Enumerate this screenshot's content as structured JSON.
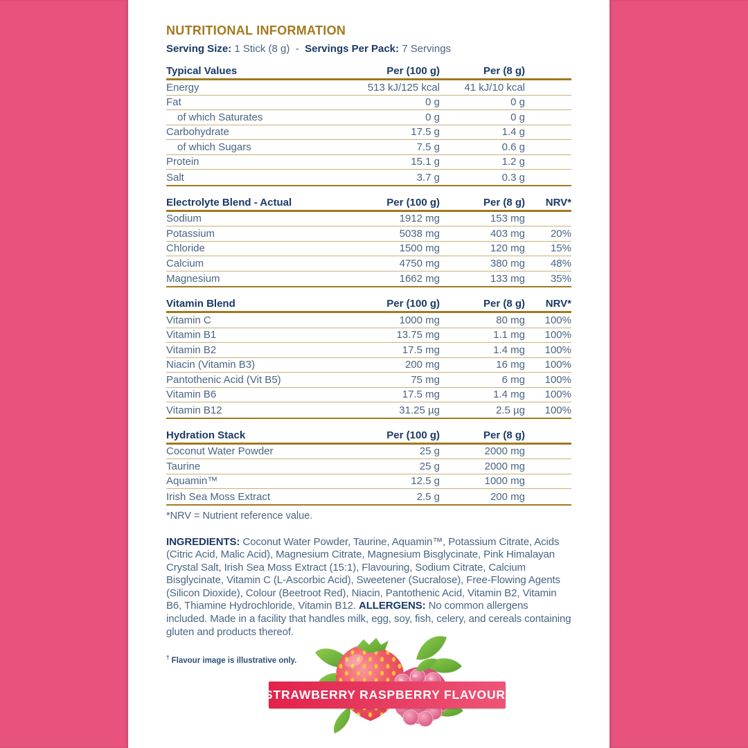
{
  "title": "NUTRITIONAL INFORMATION",
  "serving": {
    "size_label": "Serving Size:",
    "size_value": "1 Stick (8 g)",
    "separator": "-",
    "pack_label": "Servings Per Pack:",
    "pack_value": "7 Servings"
  },
  "tables": [
    {
      "title": "Typical Values",
      "columns": [
        "Per (100 g)",
        "Per (8 g)",
        ""
      ],
      "rows": [
        {
          "label": "Energy",
          "indent": false,
          "per100": "513 kJ/125 kcal",
          "per8": "41 kJ/10 kcal",
          "nrv": ""
        },
        {
          "label": "Fat",
          "indent": false,
          "per100": "0 g",
          "per8": "0 g",
          "nrv": ""
        },
        {
          "label": "of which Saturates",
          "indent": true,
          "per100": "0 g",
          "per8": "0 g",
          "nrv": ""
        },
        {
          "label": "Carbohydrate",
          "indent": false,
          "per100": "17.5 g",
          "per8": "1.4 g",
          "nrv": ""
        },
        {
          "label": "of which Sugars",
          "indent": true,
          "per100": "7.5 g",
          "per8": "0.6 g",
          "nrv": ""
        },
        {
          "label": "Protein",
          "indent": false,
          "per100": "15.1 g",
          "per8": "1.2 g",
          "nrv": ""
        },
        {
          "label": "Salt",
          "indent": false,
          "per100": "3.7 g",
          "per8": "0.3 g",
          "nrv": ""
        }
      ]
    },
    {
      "title": "Electrolyte Blend - Actual",
      "columns": [
        "Per (100 g)",
        "Per (8 g)",
        "NRV*"
      ],
      "rows": [
        {
          "label": "Sodium",
          "indent": false,
          "per100": "1912 mg",
          "per8": "153 mg",
          "nrv": ""
        },
        {
          "label": "Potassium",
          "indent": false,
          "per100": "5038 mg",
          "per8": "403 mg",
          "nrv": "20%"
        },
        {
          "label": "Chloride",
          "indent": false,
          "per100": "1500 mg",
          "per8": "120 mg",
          "nrv": "15%"
        },
        {
          "label": "Calcium",
          "indent": false,
          "per100": "4750 mg",
          "per8": "380 mg",
          "nrv": "48%"
        },
        {
          "label": "Magnesium",
          "indent": false,
          "per100": "1662 mg",
          "per8": "133 mg",
          "nrv": "35%"
        }
      ]
    },
    {
      "title": "Vitamin Blend",
      "columns": [
        "Per (100 g)",
        "Per (8 g)",
        "NRV*"
      ],
      "rows": [
        {
          "label": "Vitamin C",
          "indent": false,
          "per100": "1000 mg",
          "per8": "80 mg",
          "nrv": "100%"
        },
        {
          "label": "Vitamin B1",
          "indent": false,
          "per100": "13.75 mg",
          "per8": "1.1 mg",
          "nrv": "100%"
        },
        {
          "label": "Vitamin B2",
          "indent": false,
          "per100": "17.5 mg",
          "per8": "1.4 mg",
          "nrv": "100%"
        },
        {
          "label": "Niacin (Vitamin B3)",
          "indent": false,
          "per100": "200 mg",
          "per8": "16 mg",
          "nrv": "100%"
        },
        {
          "label": "Pantothenic Acid (Vit B5)",
          "indent": false,
          "per100": "75 mg",
          "per8": "6 mg",
          "nrv": "100%"
        },
        {
          "label": "Vitamin B6",
          "indent": false,
          "per100": "17.5 mg",
          "per8": "1.4 mg",
          "nrv": "100%"
        },
        {
          "label": "Vitamin B12",
          "indent": false,
          "per100": "31.25 µg",
          "per8": "2.5 µg",
          "nrv": "100%"
        }
      ]
    },
    {
      "title": "Hydration Stack",
      "columns": [
        "Per (100 g)",
        "Per (8 g)",
        ""
      ],
      "rows": [
        {
          "label": "Coconut Water Powder",
          "indent": false,
          "per100": "25 g",
          "per8": "2000 mg",
          "nrv": ""
        },
        {
          "label": "Taurine",
          "indent": false,
          "per100": "25 g",
          "per8": "2000 mg",
          "nrv": ""
        },
        {
          "label": "Aquamin™",
          "indent": false,
          "per100": "12.5 g",
          "per8": "1000 mg",
          "nrv": ""
        },
        {
          "label": "Irish Sea Moss Extract",
          "indent": false,
          "per100": "2.5 g",
          "per8": "200 mg",
          "nrv": ""
        }
      ]
    }
  ],
  "notes": {
    "nrv": "*NRV = Nutrient reference value.",
    "flavour_dagger": "†",
    "flavour_text": " Flavour image is illustrative only."
  },
  "ingredients": {
    "label": "INGREDIENTS:",
    "text": " Coconut Water Powder, Taurine, Aquamin™, Potassium Citrate, Acids (Citric Acid, Malic Acid), Magnesium Citrate, Magnesium Bisglycinate, Pink Himalayan Crystal Salt, Irish Sea Moss Extract (15:1), Flavouring, Sodium Citrate, Calcium Bisglycinate, Vitamin C (L-Ascorbic Acid), Sweetener (Sucralose), Free-Flowing Agents (Silicon Dioxide), Colour (Beetroot Red), Niacin, Pantothenic Acid, Vitamin B2, Vitamin B6, Thiamine Hydrochloride, Vitamin B12. ",
    "allergens_label": "ALLERGENS:",
    "allergens_text": " No common allergens included. Made in a facility that handles milk, egg, soy, fish, celery, and cereals containing gluten and products thereof."
  },
  "banner": {
    "label": "STRAWBERRY RASPBERRY FLAVOUR",
    "dagger": "†"
  },
  "icons": {
    "fruit_illustration": "strawberry-raspberry-illustration"
  },
  "colors": {
    "pink": "#E8537D",
    "gold": "#A3791E",
    "thin": "#C9B077",
    "navy": "#1A3A66",
    "slate": "#4A6482",
    "banner-from": "#E1234B",
    "banner-to": "#EE5577"
  }
}
